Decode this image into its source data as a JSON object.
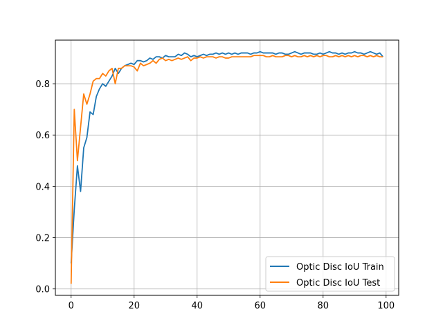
{
  "chart_data": {
    "type": "line",
    "title": "",
    "xlabel": "",
    "ylabel": "",
    "xlim": [
      -5,
      104
    ],
    "ylim": [
      -0.025,
      0.97
    ],
    "xticks": [
      0,
      20,
      40,
      60,
      80,
      100
    ],
    "yticks": [
      0.0,
      0.2,
      0.4,
      0.6,
      0.8
    ],
    "xtick_labels": [
      "0",
      "20",
      "40",
      "60",
      "80",
      "100"
    ],
    "ytick_labels": [
      "0.0",
      "0.2",
      "0.4",
      "0.6",
      "0.8"
    ],
    "grid": true,
    "legend_position": "lower-right",
    "series": [
      {
        "name": "Optic Disc IoU Train",
        "color": "#1f77b4",
        "x": [
          0,
          1,
          2,
          3,
          4,
          5,
          6,
          7,
          8,
          9,
          10,
          11,
          12,
          13,
          14,
          15,
          16,
          17,
          18,
          19,
          20,
          21,
          22,
          23,
          24,
          25,
          26,
          27,
          28,
          29,
          30,
          31,
          32,
          33,
          34,
          35,
          36,
          37,
          38,
          39,
          40,
          41,
          42,
          43,
          44,
          45,
          46,
          47,
          48,
          49,
          50,
          51,
          52,
          53,
          54,
          55,
          56,
          57,
          58,
          59,
          60,
          61,
          62,
          63,
          64,
          65,
          66,
          67,
          68,
          69,
          70,
          71,
          72,
          73,
          74,
          75,
          76,
          77,
          78,
          79,
          80,
          81,
          82,
          83,
          84,
          85,
          86,
          87,
          88,
          89,
          90,
          91,
          92,
          93,
          94,
          95,
          96,
          97,
          98,
          99
        ],
        "y": [
          0.1,
          0.31,
          0.48,
          0.38,
          0.55,
          0.59,
          0.69,
          0.68,
          0.75,
          0.78,
          0.8,
          0.79,
          0.81,
          0.83,
          0.86,
          0.84,
          0.86,
          0.87,
          0.875,
          0.88,
          0.875,
          0.89,
          0.89,
          0.885,
          0.89,
          0.9,
          0.895,
          0.905,
          0.905,
          0.9,
          0.91,
          0.905,
          0.905,
          0.905,
          0.915,
          0.91,
          0.92,
          0.915,
          0.905,
          0.91,
          0.905,
          0.91,
          0.915,
          0.91,
          0.915,
          0.915,
          0.92,
          0.915,
          0.92,
          0.915,
          0.92,
          0.915,
          0.92,
          0.915,
          0.92,
          0.92,
          0.92,
          0.915,
          0.92,
          0.92,
          0.925,
          0.92,
          0.92,
          0.92,
          0.92,
          0.915,
          0.92,
          0.92,
          0.915,
          0.915,
          0.92,
          0.925,
          0.92,
          0.915,
          0.92,
          0.92,
          0.92,
          0.915,
          0.915,
          0.92,
          0.915,
          0.92,
          0.925,
          0.92,
          0.92,
          0.915,
          0.92,
          0.915,
          0.92,
          0.92,
          0.925,
          0.92,
          0.92,
          0.915,
          0.92,
          0.925,
          0.92,
          0.915,
          0.92,
          0.905
        ]
      },
      {
        "name": "Optic Disc IoU Test",
        "color": "#ff7f0e",
        "x": [
          0,
          1,
          2,
          3,
          4,
          5,
          6,
          7,
          8,
          9,
          10,
          11,
          12,
          13,
          14,
          15,
          16,
          17,
          18,
          19,
          20,
          21,
          22,
          23,
          24,
          25,
          26,
          27,
          28,
          29,
          30,
          31,
          32,
          33,
          34,
          35,
          36,
          37,
          38,
          39,
          40,
          41,
          42,
          43,
          44,
          45,
          46,
          47,
          48,
          49,
          50,
          51,
          52,
          53,
          54,
          55,
          56,
          57,
          58,
          59,
          60,
          61,
          62,
          63,
          64,
          65,
          66,
          67,
          68,
          69,
          70,
          71,
          72,
          73,
          74,
          75,
          76,
          77,
          78,
          79,
          80,
          81,
          82,
          83,
          84,
          85,
          86,
          87,
          88,
          89,
          90,
          91,
          92,
          93,
          94,
          95,
          96,
          97,
          98,
          99
        ],
        "y": [
          0.02,
          0.7,
          0.5,
          0.63,
          0.76,
          0.72,
          0.76,
          0.81,
          0.82,
          0.82,
          0.84,
          0.83,
          0.85,
          0.86,
          0.8,
          0.86,
          0.86,
          0.87,
          0.87,
          0.87,
          0.865,
          0.85,
          0.88,
          0.87,
          0.875,
          0.88,
          0.89,
          0.88,
          0.895,
          0.9,
          0.89,
          0.895,
          0.89,
          0.895,
          0.9,
          0.895,
          0.9,
          0.905,
          0.89,
          0.9,
          0.9,
          0.905,
          0.9,
          0.905,
          0.905,
          0.905,
          0.9,
          0.905,
          0.905,
          0.9,
          0.9,
          0.905,
          0.905,
          0.905,
          0.905,
          0.905,
          0.905,
          0.905,
          0.91,
          0.91,
          0.91,
          0.91,
          0.905,
          0.905,
          0.91,
          0.905,
          0.905,
          0.905,
          0.91,
          0.91,
          0.905,
          0.91,
          0.905,
          0.905,
          0.91,
          0.905,
          0.91,
          0.905,
          0.91,
          0.905,
          0.91,
          0.91,
          0.905,
          0.905,
          0.91,
          0.905,
          0.91,
          0.905,
          0.91,
          0.905,
          0.91,
          0.905,
          0.91,
          0.91,
          0.905,
          0.91,
          0.905,
          0.91,
          0.905,
          0.905
        ]
      }
    ]
  }
}
